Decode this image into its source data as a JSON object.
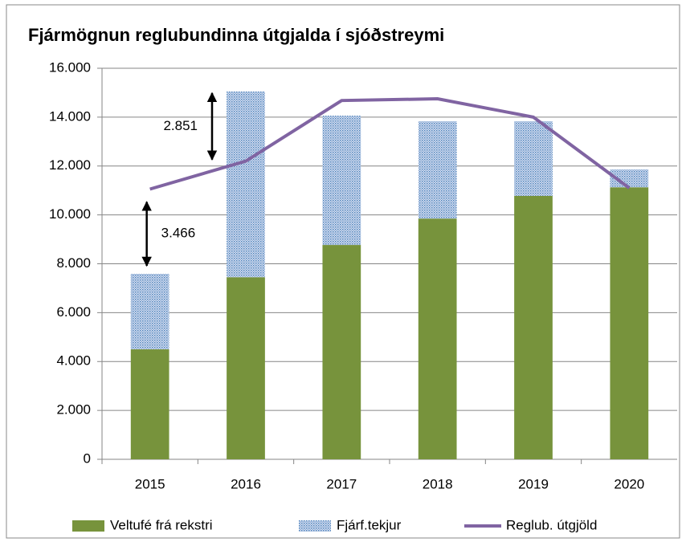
{
  "chart_data": {
    "type": "bar",
    "stacked": true,
    "title": "Fjármögnun reglubundinna útgjalda í sjóðstreymi",
    "categories": [
      "2015",
      "2016",
      "2017",
      "2018",
      "2019",
      "2020"
    ],
    "series": [
      {
        "name": "Veltufé frá rekstri",
        "type": "bar",
        "color": "#77933c",
        "values": [
          4500,
          7450,
          8770,
          9850,
          10780,
          11130
        ]
      },
      {
        "name": "Fjárf.tekjur",
        "type": "bar",
        "color": "#4f81bd",
        "values": [
          3090,
          7600,
          5290,
          3980,
          3050,
          730
        ]
      },
      {
        "name": "Reglub. útgjöld",
        "type": "line",
        "color": "#8064a2",
        "values": [
          11056,
          12199,
          14680,
          14750,
          14000,
          11100
        ]
      }
    ],
    "ylim": [
      0,
      16000
    ],
    "yticks": [
      0,
      {
        "value": 2000,
        "label": "2.000"
      },
      {
        "value": 4000,
        "label": "4.000"
      },
      {
        "value": 6000,
        "label": "6.000"
      },
      {
        "value": 8000,
        "label": "8.000"
      },
      {
        "value": 10000,
        "label": "10.000"
      },
      {
        "value": 12000,
        "label": "12.000"
      },
      {
        "value": 14000,
        "label": "14.000"
      },
      {
        "value": 16000,
        "label": "16.000"
      }
    ],
    "grid": true,
    "legend": "bottom",
    "annotations": [
      "3.466",
      "2.851"
    ]
  }
}
